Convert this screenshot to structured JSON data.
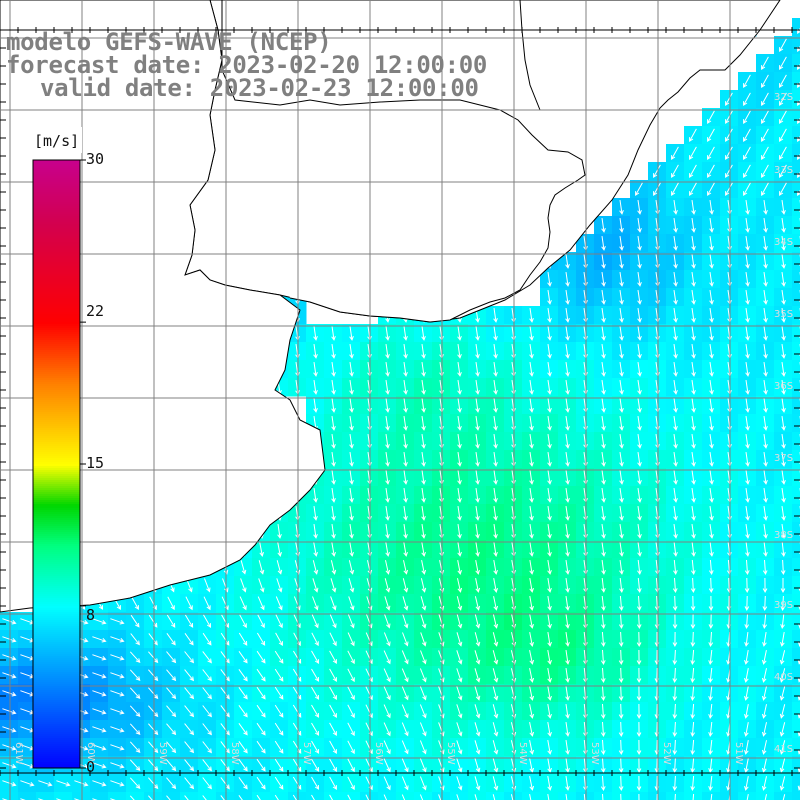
{
  "map": {
    "title_line1": "modelo GEFS-WAVE (NCEP)",
    "title_line2": "forecast date: 2023-02-20 12:00:00",
    "title_line3": "valid date: 2023-02-23 12:00:00",
    "variable": "wind speed",
    "colorbar": {
      "unit_label": "[m/s]",
      "tick_labels": [
        "30",
        "22",
        "15",
        "8",
        "0"
      ],
      "tick_values": [
        30,
        22,
        15,
        8,
        0
      ],
      "min": 0,
      "max": 30,
      "colors": [
        "#0000ff",
        "#00a0ff",
        "#00ffff",
        "#00ff80",
        "#00d000",
        "#ffff00",
        "#ff8000",
        "#ff0000",
        "#c00060",
        "#c00090"
      ]
    },
    "lat_labels": [
      "32S",
      "33S",
      "34S",
      "35S",
      "36S",
      "37S",
      "38S",
      "39S",
      "40S",
      "41S"
    ],
    "lon_labels": [
      "61W",
      "60W",
      "59W",
      "58W",
      "57W",
      "56W",
      "55W",
      "54W",
      "53W",
      "52W",
      "51W"
    ],
    "colors": {
      "land": "#ffffff",
      "coastline": "#000000",
      "grid": "#808080",
      "arrow": "#ffffff",
      "title_text": "#808080"
    }
  }
}
